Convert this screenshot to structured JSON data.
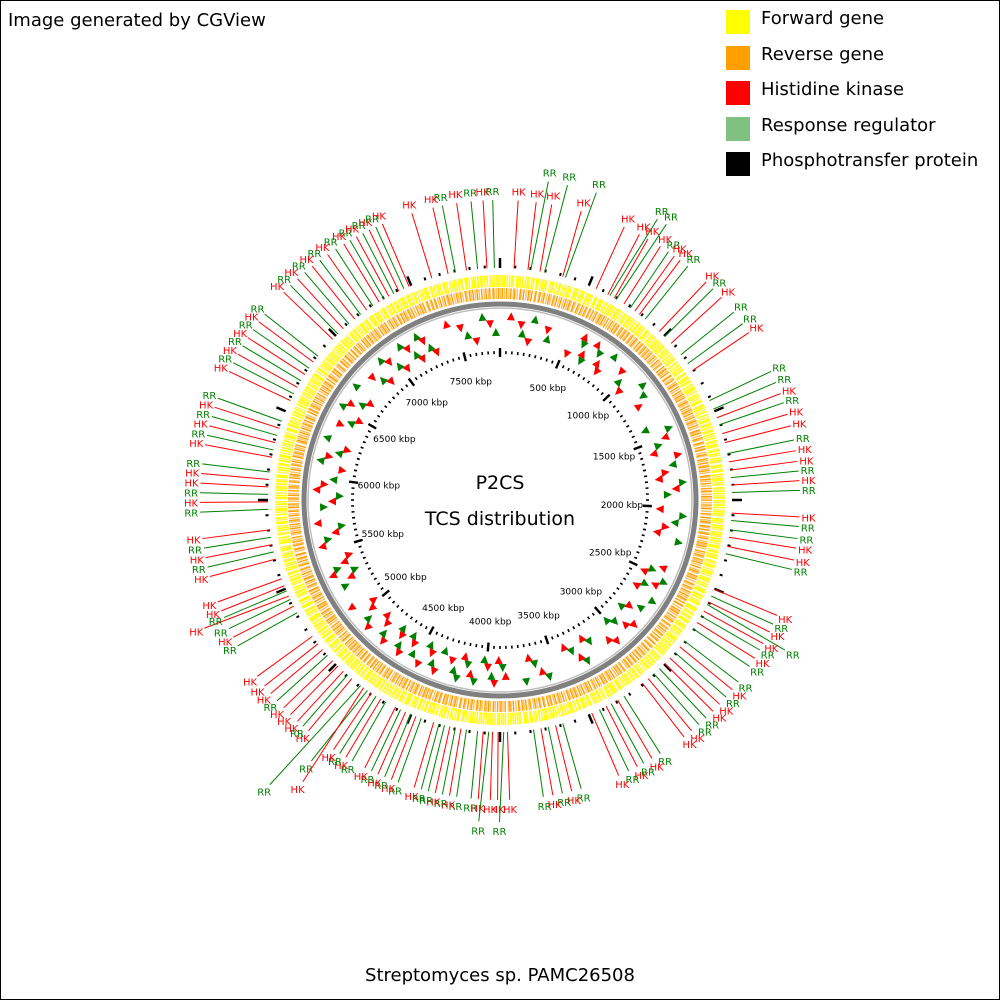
{
  "header": {
    "credit": "Image generated by CGView"
  },
  "legend": [
    {
      "label": "Forward gene",
      "color": "#ffff00"
    },
    {
      "label": "Reverse gene",
      "color": "#ffa000"
    },
    {
      "label": "Histidine kinase",
      "color": "#ff0000"
    },
    {
      "label": "Response regulator",
      "color": "#80c080"
    },
    {
      "label": "Phosphotransfer protein",
      "color": "#000000"
    }
  ],
  "map": {
    "title_line1": "P2CS",
    "title_line2": "TCS distribution",
    "genome_length_kbp": 7800,
    "ruler_labels": [
      "500 kbp",
      "1000 kbp",
      "1500 kbp",
      "2000 kbp",
      "2500 kbp",
      "3000 kbp",
      "3500 kbp",
      "4000 kbp",
      "4500 kbp",
      "5000 kbp",
      "5500 kbp",
      "6000 kbp",
      "6500 kbp",
      "7000 kbp",
      "7500 kbp"
    ],
    "hk_label": "HK",
    "rr_label": "RR",
    "hk_color": "#ff0000",
    "rr_color": "#008000",
    "backbone_color": "#808080"
  },
  "features": [
    {
      "type": "HK",
      "pos_kbp": 75
    },
    {
      "type": "HK",
      "pos_kbp": 150
    },
    {
      "type": "RR",
      "pos_kbp": 165
    },
    {
      "type": "HK",
      "pos_kbp": 215
    },
    {
      "type": "RR",
      "pos_kbp": 240
    },
    {
      "type": "HK",
      "pos_kbp": 340
    },
    {
      "type": "RR",
      "pos_kbp": 355
    },
    {
      "type": "HK",
      "pos_kbp": 530
    },
    {
      "type": "HK",
      "pos_kbp": 600
    },
    {
      "type": "RR",
      "pos_kbp": 612
    },
    {
      "type": "HK",
      "pos_kbp": 640
    },
    {
      "type": "RR",
      "pos_kbp": 652
    },
    {
      "type": "HK",
      "pos_kbp": 700
    },
    {
      "type": "RR",
      "pos_kbp": 740
    },
    {
      "type": "HK",
      "pos_kbp": 770
    },
    {
      "type": "HK",
      "pos_kbp": 800
    },
    {
      "type": "RR",
      "pos_kbp": 840
    },
    {
      "type": "HK",
      "pos_kbp": 940
    },
    {
      "type": "RR",
      "pos_kbp": 980
    },
    {
      "type": "HK",
      "pos_kbp": 1030
    },
    {
      "type": "RR",
      "pos_kbp": 1110
    },
    {
      "type": "RR",
      "pos_kbp": 1170
    },
    {
      "type": "HK",
      "pos_kbp": 1215
    },
    {
      "type": "RR",
      "pos_kbp": 1400
    },
    {
      "type": "RR",
      "pos_kbp": 1450
    },
    {
      "type": "HK",
      "pos_kbp": 1500
    },
    {
      "type": "RR",
      "pos_kbp": 1540
    },
    {
      "type": "HK",
      "pos_kbp": 1590
    },
    {
      "type": "HK",
      "pos_kbp": 1640
    },
    {
      "type": "RR",
      "pos_kbp": 1700
    },
    {
      "type": "HK",
      "pos_kbp": 1745
    },
    {
      "type": "HK",
      "pos_kbp": 1790
    },
    {
      "type": "RR",
      "pos_kbp": 1830
    },
    {
      "type": "HK",
      "pos_kbp": 1870
    },
    {
      "type": "RR",
      "pos_kbp": 1910
    },
    {
      "type": "HK",
      "pos_kbp": 2020
    },
    {
      "type": "RR",
      "pos_kbp": 2060
    },
    {
      "type": "RR",
      "pos_kbp": 2110
    },
    {
      "type": "HK",
      "pos_kbp": 2150
    },
    {
      "type": "HK",
      "pos_kbp": 2200
    },
    {
      "type": "RR",
      "pos_kbp": 2240
    },
    {
      "type": "HK",
      "pos_kbp": 2440
    },
    {
      "type": "RR",
      "pos_kbp": 2480
    },
    {
      "type": "HK",
      "pos_kbp": 2515
    },
    {
      "type": "RR",
      "pos_kbp": 2530
    },
    {
      "type": "HK",
      "pos_kbp": 2570
    },
    {
      "type": "RR",
      "pos_kbp": 2600
    },
    {
      "type": "HK",
      "pos_kbp": 2640
    },
    {
      "type": "RR",
      "pos_kbp": 2680
    },
    {
      "type": "RR",
      "pos_kbp": 2760
    },
    {
      "type": "HK",
      "pos_kbp": 2800
    },
    {
      "type": "RR",
      "pos_kbp": 2840
    },
    {
      "type": "HK",
      "pos_kbp": 2880
    },
    {
      "type": "HK",
      "pos_kbp": 2920
    },
    {
      "type": "RR",
      "pos_kbp": 2960
    },
    {
      "type": "RR",
      "pos_kbp": 3000
    },
    {
      "type": "HK",
      "pos_kbp": 3040
    },
    {
      "type": "HK",
      "pos_kbp": 3080
    },
    {
      "type": "RR",
      "pos_kbp": 3200
    },
    {
      "type": "HK",
      "pos_kbp": 3240
    },
    {
      "type": "RR",
      "pos_kbp": 3280
    },
    {
      "type": "HK",
      "pos_kbp": 3310
    },
    {
      "type": "RR",
      "pos_kbp": 3350
    },
    {
      "type": "HK",
      "pos_kbp": 3395
    },
    {
      "type": "RR",
      "pos_kbp": 3560
    },
    {
      "type": "HK",
      "pos_kbp": 3600
    },
    {
      "type": "RR",
      "pos_kbp": 3640
    },
    {
      "type": "HK",
      "pos_kbp": 3680
    },
    {
      "type": "RR",
      "pos_kbp": 3720
    },
    {
      "type": "HK",
      "pos_kbp": 3860
    },
    {
      "type": "RR",
      "pos_kbp": 3880
    },
    {
      "type": "HK",
      "pos_kbp": 3910
    },
    {
      "type": "HK",
      "pos_kbp": 3940
    },
    {
      "type": "RR",
      "pos_kbp": 3960
    },
    {
      "type": "HK",
      "pos_kbp": 3990
    },
    {
      "type": "RR",
      "pos_kbp": 4020
    },
    {
      "type": "RR",
      "pos_kbp": 4080
    },
    {
      "type": "HK",
      "pos_kbp": 4110
    },
    {
      "type": "RR",
      "pos_kbp": 4140
    },
    {
      "type": "HK",
      "pos_kbp": 4170
    },
    {
      "type": "RR",
      "pos_kbp": 4200
    },
    {
      "type": "RR",
      "pos_kbp": 4230
    },
    {
      "type": "HK",
      "pos_kbp": 4260
    },
    {
      "type": "RR",
      "pos_kbp": 4330
    },
    {
      "type": "HK",
      "pos_kbp": 4360
    },
    {
      "type": "RR",
      "pos_kbp": 4390
    },
    {
      "type": "HK",
      "pos_kbp": 4420
    },
    {
      "type": "RR",
      "pos_kbp": 4450
    },
    {
      "type": "HK",
      "pos_kbp": 4480
    },
    {
      "type": "RR",
      "pos_kbp": 4540
    },
    {
      "type": "HK",
      "pos_kbp": 4570
    },
    {
      "type": "RR",
      "pos_kbp": 4600
    },
    {
      "type": "HK",
      "pos_kbp": 4630
    },
    {
      "type": "RR",
      "pos_kbp": 4655
    },
    {
      "type": "HK",
      "pos_kbp": 4680
    },
    {
      "type": "RR",
      "pos_kbp": 4700
    },
    {
      "type": "HK",
      "pos_kbp": 4760
    },
    {
      "type": "RR",
      "pos_kbp": 4790
    },
    {
      "type": "HK",
      "pos_kbp": 4820
    },
    {
      "type": "HK",
      "pos_kbp": 4860
    },
    {
      "type": "HK",
      "pos_kbp": 4900
    },
    {
      "type": "RR",
      "pos_kbp": 4940
    },
    {
      "type": "HK",
      "pos_kbp": 4980
    },
    {
      "type": "HK",
      "pos_kbp": 5020
    },
    {
      "type": "HK",
      "pos_kbp": 5070
    },
    {
      "type": "RR",
      "pos_kbp": 5220
    },
    {
      "type": "HK",
      "pos_kbp": 5260
    },
    {
      "type": "RR",
      "pos_kbp": 5300
    },
    {
      "type": "HK",
      "pos_kbp": 5320
    },
    {
      "type": "RR",
      "pos_kbp": 5350
    },
    {
      "type": "HK",
      "pos_kbp": 5380
    },
    {
      "type": "HK",
      "pos_kbp": 5420
    },
    {
      "type": "HK",
      "pos_kbp": 5530
    },
    {
      "type": "RR",
      "pos_kbp": 5570
    },
    {
      "type": "HK",
      "pos_kbp": 5610
    },
    {
      "type": "RR",
      "pos_kbp": 5650
    },
    {
      "type": "HK",
      "pos_kbp": 5690
    },
    {
      "type": "RR",
      "pos_kbp": 5800
    },
    {
      "type": "HK",
      "pos_kbp": 5840
    },
    {
      "type": "RR",
      "pos_kbp": 5880
    },
    {
      "type": "HK",
      "pos_kbp": 5920
    },
    {
      "type": "HK",
      "pos_kbp": 5960
    },
    {
      "type": "RR",
      "pos_kbp": 6000
    },
    {
      "type": "HK",
      "pos_kbp": 6080
    },
    {
      "type": "RR",
      "pos_kbp": 6120
    },
    {
      "type": "HK",
      "pos_kbp": 6160
    },
    {
      "type": "RR",
      "pos_kbp": 6200
    },
    {
      "type": "HK",
      "pos_kbp": 6240
    },
    {
      "type": "RR",
      "pos_kbp": 6280
    },
    {
      "type": "HK",
      "pos_kbp": 6400
    },
    {
      "type": "RR",
      "pos_kbp": 6440
    },
    {
      "type": "HK",
      "pos_kbp": 6480
    },
    {
      "type": "RR",
      "pos_kbp": 6520
    },
    {
      "type": "HK",
      "pos_kbp": 6560
    },
    {
      "type": "RR",
      "pos_kbp": 6600
    },
    {
      "type": "HK",
      "pos_kbp": 6640
    },
    {
      "type": "RR",
      "pos_kbp": 6680
    },
    {
      "type": "HK",
      "pos_kbp": 6800
    },
    {
      "type": "RR",
      "pos_kbp": 6840
    },
    {
      "type": "HK",
      "pos_kbp": 6880
    },
    {
      "type": "RR",
      "pos_kbp": 6920
    },
    {
      "type": "HK",
      "pos_kbp": 6960
    },
    {
      "type": "RR",
      "pos_kbp": 7000
    },
    {
      "type": "HK",
      "pos_kbp": 7040
    },
    {
      "type": "RR",
      "pos_kbp": 7080
    },
    {
      "type": "HK",
      "pos_kbp": 7120
    },
    {
      "type": "RR",
      "pos_kbp": 7150
    },
    {
      "type": "HK",
      "pos_kbp": 7180
    },
    {
      "type": "RR",
      "pos_kbp": 7210
    },
    {
      "type": "HK",
      "pos_kbp": 7240
    },
    {
      "type": "RR",
      "pos_kbp": 7270
    },
    {
      "type": "HK",
      "pos_kbp": 7300
    },
    {
      "type": "HK",
      "pos_kbp": 7430
    },
    {
      "type": "HK",
      "pos_kbp": 7520
    },
    {
      "type": "RR",
      "pos_kbp": 7560
    },
    {
      "type": "HK",
      "pos_kbp": 7620
    },
    {
      "type": "RR",
      "pos_kbp": 7680
    },
    {
      "type": "HK",
      "pos_kbp": 7730
    },
    {
      "type": "RR",
      "pos_kbp": 7770
    }
  ],
  "footer": {
    "organism": "Streptomyces sp. PAMC26508"
  }
}
